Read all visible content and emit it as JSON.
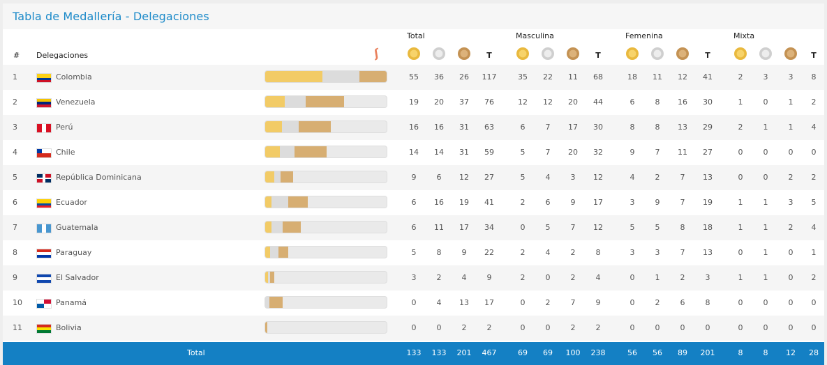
{
  "title": "Tabla de Medallería - Delegaciones",
  "columns": {
    "rank": "#",
    "delegation": "Delegaciones",
    "groups": [
      "Total",
      "Masculina",
      "Femenina",
      "Mixta"
    ],
    "t_label": "T"
  },
  "colors": {
    "accent": "#1c8ac9",
    "footer": "#1480c4",
    "gold": "#f2cb66",
    "silver": "#dcdcdc",
    "bronze": "#d7ae72"
  },
  "rows": [
    {
      "rank": "1",
      "country": "Colombia",
      "flag": "colombia",
      "bar": [
        55,
        36,
        26
      ],
      "total": [
        "55",
        "36",
        "26",
        "117"
      ],
      "masc": [
        "35",
        "22",
        "11",
        "68"
      ],
      "fem": [
        "18",
        "11",
        "12",
        "41"
      ],
      "mix": [
        "2",
        "3",
        "3",
        "8"
      ]
    },
    {
      "rank": "2",
      "country": "Venezuela",
      "flag": "venezuela",
      "bar": [
        19,
        20,
        37
      ],
      "total": [
        "19",
        "20",
        "37",
        "76"
      ],
      "masc": [
        "12",
        "12",
        "20",
        "44"
      ],
      "fem": [
        "6",
        "8",
        "16",
        "30"
      ],
      "mix": [
        "1",
        "0",
        "1",
        "2"
      ]
    },
    {
      "rank": "3",
      "country": "Perú",
      "flag": "peru",
      "bar": [
        16,
        16,
        31
      ],
      "total": [
        "16",
        "16",
        "31",
        "63"
      ],
      "masc": [
        "6",
        "7",
        "17",
        "30"
      ],
      "fem": [
        "8",
        "8",
        "13",
        "29"
      ],
      "mix": [
        "2",
        "1",
        "1",
        "4"
      ]
    },
    {
      "rank": "4",
      "country": "Chile",
      "flag": "chile",
      "bar": [
        14,
        14,
        31
      ],
      "total": [
        "14",
        "14",
        "31",
        "59"
      ],
      "masc": [
        "5",
        "7",
        "20",
        "32"
      ],
      "fem": [
        "9",
        "7",
        "11",
        "27"
      ],
      "mix": [
        "0",
        "0",
        "0",
        "0"
      ]
    },
    {
      "rank": "5",
      "country": "República Dominicana",
      "flag": "dominicana",
      "bar": [
        9,
        6,
        12
      ],
      "total": [
        "9",
        "6",
        "12",
        "27"
      ],
      "masc": [
        "5",
        "4",
        "3",
        "12"
      ],
      "fem": [
        "4",
        "2",
        "7",
        "13"
      ],
      "mix": [
        "0",
        "0",
        "2",
        "2"
      ]
    },
    {
      "rank": "6",
      "country": "Ecuador",
      "flag": "ecuador",
      "bar": [
        6,
        16,
        19
      ],
      "total": [
        "6",
        "16",
        "19",
        "41"
      ],
      "masc": [
        "2",
        "6",
        "9",
        "17"
      ],
      "fem": [
        "3",
        "9",
        "7",
        "19"
      ],
      "mix": [
        "1",
        "1",
        "3",
        "5"
      ]
    },
    {
      "rank": "7",
      "country": "Guatemala",
      "flag": "guatemala",
      "bar": [
        6,
        11,
        17
      ],
      "total": [
        "6",
        "11",
        "17",
        "34"
      ],
      "masc": [
        "0",
        "5",
        "7",
        "12"
      ],
      "fem": [
        "5",
        "5",
        "8",
        "18"
      ],
      "mix": [
        "1",
        "1",
        "2",
        "4"
      ]
    },
    {
      "rank": "8",
      "country": "Paraguay",
      "flag": "paraguay",
      "bar": [
        5,
        8,
        9
      ],
      "total": [
        "5",
        "8",
        "9",
        "22"
      ],
      "masc": [
        "2",
        "4",
        "2",
        "8"
      ],
      "fem": [
        "3",
        "3",
        "7",
        "13"
      ],
      "mix": [
        "0",
        "1",
        "0",
        "1"
      ]
    },
    {
      "rank": "9",
      "country": "El Salvador",
      "flag": "elsalvador",
      "bar": [
        3,
        2,
        4
      ],
      "total": [
        "3",
        "2",
        "4",
        "9"
      ],
      "masc": [
        "2",
        "0",
        "2",
        "4"
      ],
      "fem": [
        "0",
        "1",
        "2",
        "3"
      ],
      "mix": [
        "1",
        "1",
        "0",
        "2"
      ]
    },
    {
      "rank": "10",
      "country": "Panamá",
      "flag": "panama",
      "bar": [
        0,
        4,
        13
      ],
      "total": [
        "0",
        "4",
        "13",
        "17"
      ],
      "masc": [
        "0",
        "2",
        "7",
        "9"
      ],
      "fem": [
        "0",
        "2",
        "6",
        "8"
      ],
      "mix": [
        "0",
        "0",
        "0",
        "0"
      ]
    },
    {
      "rank": "11",
      "country": "Bolivia",
      "flag": "bolivia",
      "bar": [
        0,
        0,
        2
      ],
      "total": [
        "0",
        "0",
        "2",
        "2"
      ],
      "masc": [
        "0",
        "0",
        "2",
        "2"
      ],
      "fem": [
        "0",
        "0",
        "0",
        "0"
      ],
      "mix": [
        "0",
        "0",
        "0",
        "0"
      ]
    }
  ],
  "footer": {
    "label": "Total",
    "total": [
      "133",
      "133",
      "201",
      "467"
    ],
    "masc": [
      "69",
      "69",
      "100",
      "238"
    ],
    "fem": [
      "56",
      "56",
      "89",
      "201"
    ],
    "mix": [
      "8",
      "8",
      "12",
      "28"
    ]
  }
}
